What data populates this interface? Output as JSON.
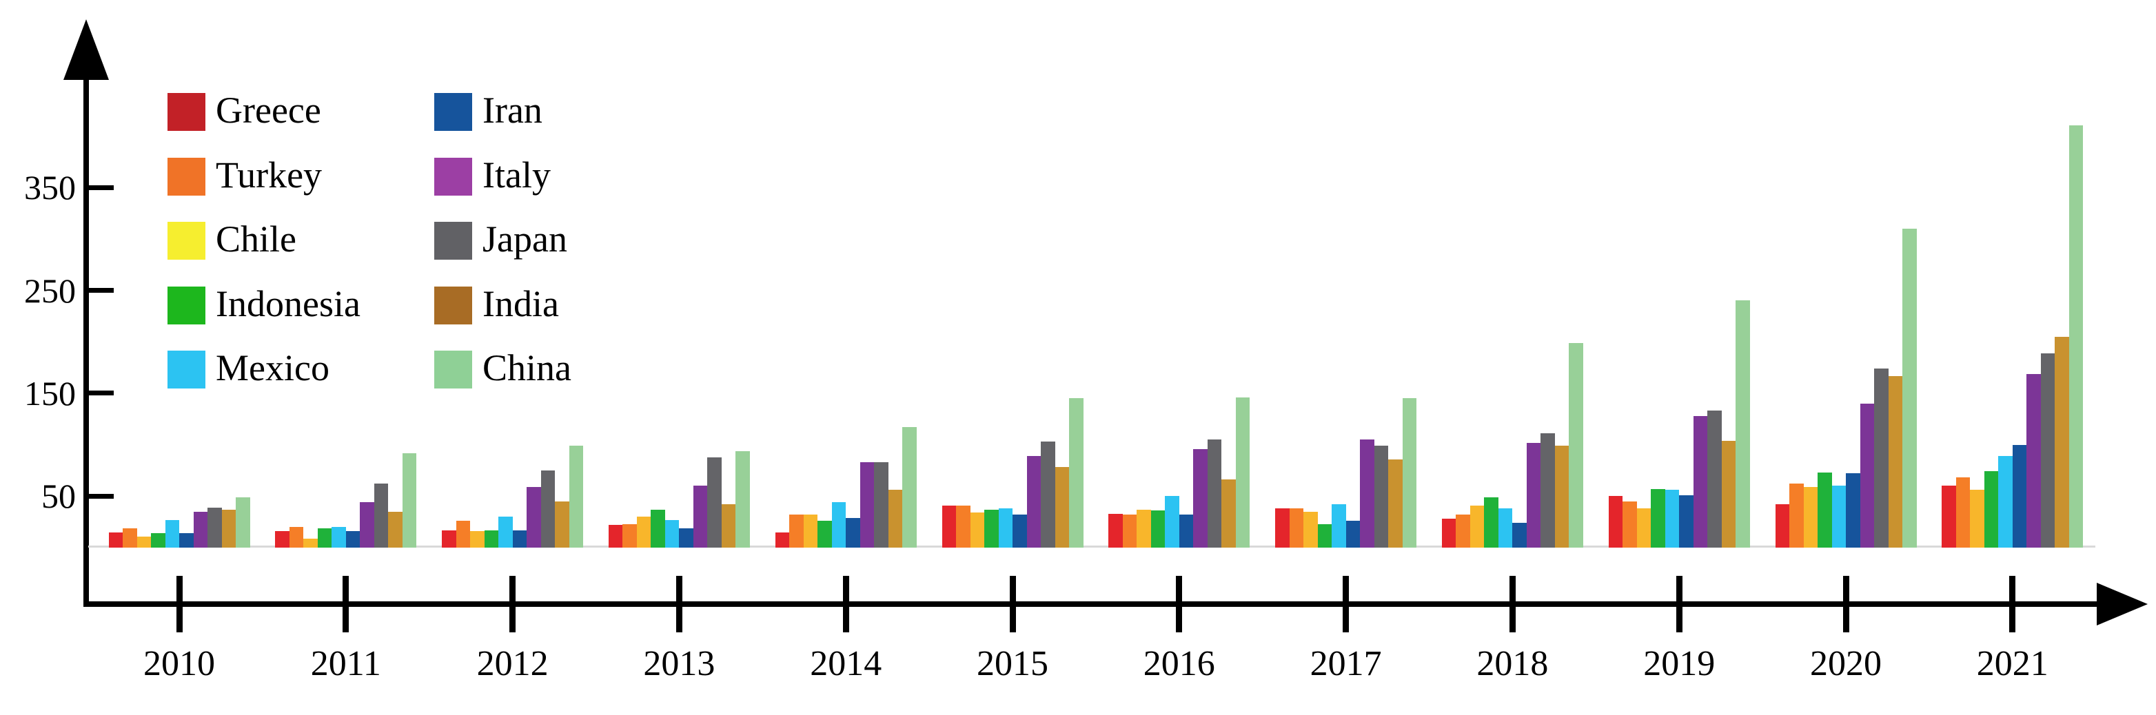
{
  "chart_data": {
    "type": "bar",
    "title": "",
    "xlabel": "",
    "ylabel": "",
    "categories": [
      "2010",
      "2011",
      "2012",
      "2013",
      "2014",
      "2015",
      "2016",
      "2017",
      "2018",
      "2019",
      "2020",
      "2021"
    ],
    "series": [
      {
        "name": "Greece",
        "bar_color": "#e4252b",
        "legend_color": "#c22127",
        "values": [
          15,
          16,
          17,
          22,
          15,
          41,
          33,
          38,
          28,
          50,
          42,
          60
        ]
      },
      {
        "name": "Turkey",
        "bar_color": "#f57e27",
        "legend_color": "#f07327",
        "values": [
          19,
          20,
          26,
          23,
          32,
          41,
          32,
          38,
          32,
          45,
          62,
          68
        ]
      },
      {
        "name": "Chile",
        "bar_color": "#f8b62b",
        "legend_color": "#f6ee2f",
        "values": [
          11,
          9,
          16,
          30,
          32,
          34,
          37,
          35,
          41,
          38,
          59,
          56
        ]
      },
      {
        "name": "Indonesia",
        "bar_color": "#1fb23a",
        "legend_color": "#1db71d",
        "values": [
          14,
          19,
          17,
          37,
          26,
          37,
          36,
          23,
          49,
          57,
          73,
          74
        ]
      },
      {
        "name": "Mexico",
        "bar_color": "#2cc3f2",
        "legend_color": "#2cc3f2",
        "values": [
          27,
          20,
          30,
          27,
          44,
          38,
          50,
          42,
          38,
          56,
          60,
          89
        ]
      },
      {
        "name": "Iran",
        "bar_color": "#16549c",
        "legend_color": "#16549c",
        "values": [
          14,
          16,
          17,
          19,
          29,
          32,
          32,
          26,
          24,
          51,
          72,
          100
        ]
      },
      {
        "name": "Italy",
        "bar_color": "#7c3597",
        "legend_color": "#9c3fa4",
        "values": [
          35,
          44,
          59,
          60,
          83,
          89,
          96,
          105,
          102,
          128,
          140,
          169
        ]
      },
      {
        "name": "Japan",
        "bar_color": "#646468",
        "legend_color": "#616165",
        "values": [
          39,
          62,
          75,
          88,
          83,
          103,
          105,
          99,
          111,
          133,
          174,
          189
        ]
      },
      {
        "name": "India",
        "bar_color": "#c9922f",
        "legend_color": "#a86c25",
        "values": [
          37,
          35,
          45,
          42,
          56,
          78,
          66,
          86,
          99,
          104,
          167,
          205
        ]
      },
      {
        "name": "China",
        "bar_color": "#98d098",
        "legend_color": "#8fd096",
        "values": [
          49,
          92,
          99,
          94,
          117,
          145,
          146,
          145,
          199,
          240,
          310,
          410
        ]
      }
    ],
    "yticks": [
      50,
      150,
      250,
      350
    ],
    "ytick_labels": [
      "50",
      "150",
      "250",
      "350"
    ],
    "ylim": [
      0,
      440
    ],
    "grid": false,
    "legend_position": "top-left",
    "legend_columns": 2,
    "axis_color": "#000000",
    "baseline_color": "#d9d9d9",
    "background_color": "#ffffff"
  }
}
